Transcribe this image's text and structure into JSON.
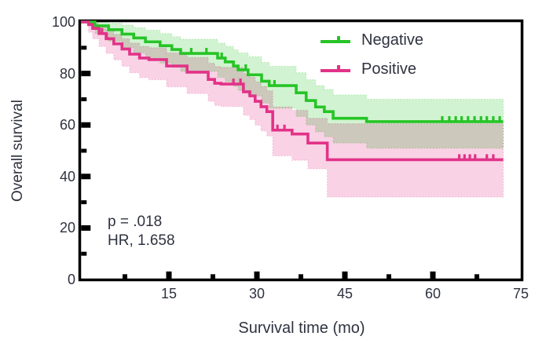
{
  "chart_data": {
    "type": "line",
    "subtype": "kaplan_meier_step_with_confidence_bands",
    "title": "",
    "xlabel": "Survival time (mo)",
    "ylabel": "Overall survival",
    "xlim": [
      0,
      75
    ],
    "ylim": [
      0,
      100
    ],
    "x_tick_labels": [
      15,
      30,
      45,
      60,
      75
    ],
    "x_minor_ticks": [
      7.5,
      22.5,
      37.5,
      52.5,
      67.5
    ],
    "y_tick_labels": [
      0,
      20,
      40,
      60,
      80,
      100
    ],
    "y_minor_ticks": [
      10,
      30,
      50,
      70,
      90
    ],
    "grid": false,
    "legend_position": "top-right",
    "annotation": {
      "p_value": "p = .018",
      "hazard_ratio": "HR, 1.658"
    },
    "text_color": "#2f3240",
    "frame_color": "#000000",
    "series": [
      {
        "name": "Negative",
        "color": "#26c426",
        "band_opacity": 0.21,
        "end_time": 72,
        "steps": [
          [
            0,
            100
          ],
          [
            2.4,
            98.5
          ],
          [
            4.7,
            97
          ],
          [
            7,
            95.3
          ],
          [
            9,
            93.8
          ],
          [
            11,
            92.3
          ],
          [
            13.5,
            90.8
          ],
          [
            15.5,
            89.3
          ],
          [
            17,
            87.8
          ],
          [
            23.3,
            86
          ],
          [
            24.6,
            84.5
          ],
          [
            26,
            82.9
          ],
          [
            26.8,
            81.4
          ],
          [
            28.5,
            79.5
          ],
          [
            30.8,
            77
          ],
          [
            32.1,
            75.3
          ],
          [
            36.7,
            72.5
          ],
          [
            38.4,
            69.5
          ],
          [
            40,
            67
          ],
          [
            41.5,
            65.2
          ],
          [
            43,
            62.6
          ],
          [
            48.7,
            61.3
          ]
        ],
        "censor_times": [
          18.8,
          21.4,
          24,
          28.1,
          33,
          61.6,
          62.8,
          63.9,
          64.9,
          66,
          67.1,
          68.2,
          69.2,
          70.3,
          71.4
        ],
        "ci_upper": [
          [
            0,
            100
          ],
          [
            2.4,
            100
          ],
          [
            4.7,
            99.5
          ],
          [
            7,
            98.8
          ],
          [
            9,
            97.8
          ],
          [
            11,
            96.8
          ],
          [
            13.5,
            95.5
          ],
          [
            15.5,
            94.3
          ],
          [
            17,
            93.3
          ],
          [
            23.3,
            91.8
          ],
          [
            24.6,
            90.5
          ],
          [
            26,
            89.2
          ],
          [
            26.8,
            88
          ],
          [
            28.5,
            86.5
          ],
          [
            30.8,
            84.3
          ],
          [
            32.1,
            82.8
          ],
          [
            36.7,
            80.3
          ],
          [
            38.4,
            77.6
          ],
          [
            40,
            75.3
          ],
          [
            41.5,
            73.8
          ],
          [
            43,
            71.7
          ],
          [
            48.7,
            70
          ]
        ],
        "ci_lower": [
          [
            0,
            100
          ],
          [
            2.4,
            95.5
          ],
          [
            4.7,
            92.5
          ],
          [
            7,
            90
          ],
          [
            9,
            88
          ],
          [
            11,
            86
          ],
          [
            13.5,
            84
          ],
          [
            15.5,
            82.3
          ],
          [
            17,
            80.8
          ],
          [
            23.3,
            78.5
          ],
          [
            24.6,
            76.8
          ],
          [
            26,
            75
          ],
          [
            26.8,
            73.4
          ],
          [
            28.5,
            71.3
          ],
          [
            30.8,
            68.5
          ],
          [
            32.1,
            66.5
          ],
          [
            36.7,
            63.3
          ],
          [
            38.4,
            60
          ],
          [
            40,
            57.3
          ],
          [
            41.5,
            55.4
          ],
          [
            43,
            53
          ],
          [
            48.7,
            51
          ]
        ]
      },
      {
        "name": "Positive",
        "color": "#e23288",
        "band_opacity": 0.22,
        "end_time": 72,
        "steps": [
          [
            0,
            100
          ],
          [
            1.3,
            99
          ],
          [
            2,
            97.5
          ],
          [
            3.1,
            95.5
          ],
          [
            4.3,
            93.5
          ],
          [
            5.6,
            91.5
          ],
          [
            7,
            89.5
          ],
          [
            8.3,
            87.5
          ],
          [
            10,
            86
          ],
          [
            11.6,
            85.4
          ],
          [
            14.6,
            82.9
          ],
          [
            18.1,
            80.5
          ],
          [
            21.7,
            77.7
          ],
          [
            22.8,
            76.2
          ],
          [
            23.9,
            75.9
          ],
          [
            27.7,
            72.9
          ],
          [
            28.8,
            71.3
          ],
          [
            29.7,
            69.2
          ],
          [
            30.7,
            67.1
          ],
          [
            31.7,
            65.2
          ],
          [
            32.7,
            58
          ],
          [
            36,
            56.5
          ],
          [
            38.7,
            53
          ],
          [
            42,
            46.5
          ]
        ],
        "censor_times": [
          3.6,
          4.4,
          26,
          27.2,
          33.5,
          34.7,
          64.5,
          65.4,
          66.3,
          67.2,
          69.2,
          70.3
        ],
        "ci_upper": [
          [
            0,
            100
          ],
          [
            1.3,
            100
          ],
          [
            2,
            99.5
          ],
          [
            3.1,
            98.3
          ],
          [
            4.3,
            96.8
          ],
          [
            5.6,
            95.2
          ],
          [
            7,
            93.5
          ],
          [
            8.3,
            91.8
          ],
          [
            10,
            90.5
          ],
          [
            11.6,
            90
          ],
          [
            14.6,
            88
          ],
          [
            18.1,
            86.2
          ],
          [
            21.7,
            84
          ],
          [
            22.8,
            82.7
          ],
          [
            23.9,
            82.4
          ],
          [
            27.7,
            80
          ],
          [
            28.8,
            78.6
          ],
          [
            29.7,
            76.8
          ],
          [
            30.7,
            75
          ],
          [
            31.7,
            73.3
          ],
          [
            32.7,
            67
          ],
          [
            36,
            65.7
          ],
          [
            38.7,
            62.6
          ],
          [
            42,
            60.5
          ]
        ],
        "ci_lower": [
          [
            0,
            100
          ],
          [
            1.3,
            96
          ],
          [
            2,
            93.5
          ],
          [
            3.1,
            90.5
          ],
          [
            4.3,
            87.8
          ],
          [
            5.6,
            85.3
          ],
          [
            7,
            82.8
          ],
          [
            8.3,
            80.3
          ],
          [
            10,
            78.4
          ],
          [
            11.6,
            77.6
          ],
          [
            14.6,
            74.8
          ],
          [
            18.1,
            72.2
          ],
          [
            21.7,
            69.2
          ],
          [
            22.8,
            67.6
          ],
          [
            23.9,
            67.2
          ],
          [
            27.7,
            63.8
          ],
          [
            28.8,
            62.1
          ],
          [
            29.7,
            59.9
          ],
          [
            30.7,
            57.7
          ],
          [
            31.7,
            55.7
          ],
          [
            32.7,
            48
          ],
          [
            36,
            46.3
          ],
          [
            38.7,
            43
          ],
          [
            42,
            32
          ]
        ]
      }
    ]
  }
}
